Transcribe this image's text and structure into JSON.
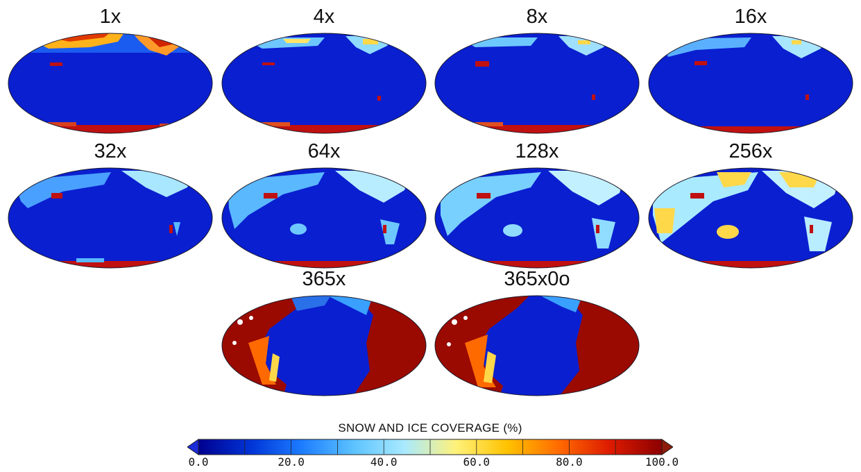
{
  "panels": [
    {
      "label": "1x"
    },
    {
      "label": "4x"
    },
    {
      "label": "8x"
    },
    {
      "label": "16x"
    },
    {
      "label": "32x"
    },
    {
      "label": "64x"
    },
    {
      "label": "128x"
    },
    {
      "label": "256x"
    },
    {
      "label": "365x"
    },
    {
      "label": "365x0o"
    }
  ],
  "colorbar": {
    "title": "SNOW AND ICE COVERAGE (%)",
    "ticks": [
      "0.0",
      "20.0",
      "40.0",
      "60.0",
      "80.0",
      "100.0"
    ],
    "min": 0,
    "max": 100,
    "colors": [
      "#00008f",
      "#0033d6",
      "#1c7cff",
      "#5bc2ff",
      "#a9eaff",
      "#fff27a",
      "#ffc200",
      "#ff6a00",
      "#dd1a00",
      "#8c0000"
    ],
    "under_color": "#1a2bd9",
    "over_color": "#8c1a0a"
  }
}
